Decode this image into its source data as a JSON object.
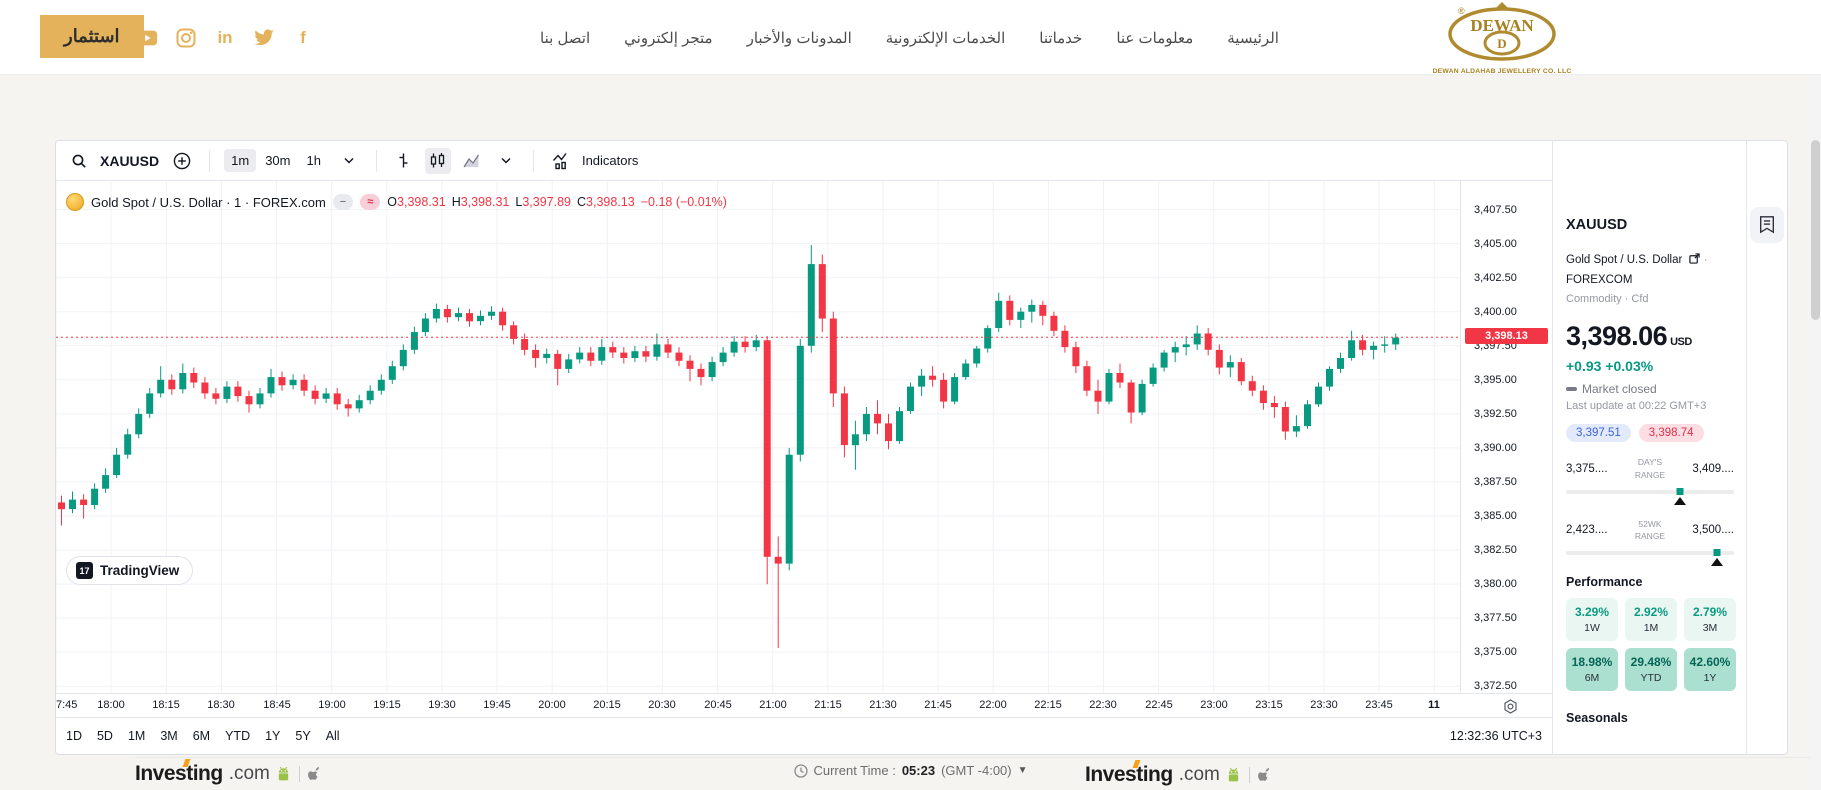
{
  "header": {
    "invest_button": "استثمار",
    "social": [
      "youtube-icon",
      "instagram-icon",
      "linkedin-icon",
      "twitter-icon",
      "facebook-icon"
    ],
    "nav": [
      {
        "label": "اتصل بنا"
      },
      {
        "label": "متجر إلكتروني"
      },
      {
        "label": "المدونات والأخبار"
      },
      {
        "label": "الخدمات الإلكترونية"
      },
      {
        "label": "خدماتنا"
      },
      {
        "label": "معلومات عنا"
      },
      {
        "label": "الرئيسية"
      }
    ],
    "logo": {
      "name": "DEWAN",
      "subtitle": "DEWAN ALDAHAB JEWELLERY CO. LLC"
    }
  },
  "toolbar": {
    "symbol": "XAUUSD",
    "intervals": [
      "1m",
      "30m",
      "1h"
    ],
    "active_interval": "1m",
    "indicators_label": "Indicators"
  },
  "legend": {
    "title": "Gold Spot / U.S. Dollar · 1 · FOREX.com",
    "minus_pill": "−",
    "approx_pill": "≈",
    "o_label": "O",
    "o": "3,398.31",
    "h_label": "H",
    "h": "3,398.31",
    "l_label": "L",
    "l": "3,397.89",
    "c_label": "C",
    "c": "3,398.13",
    "change": "−0.18 (−0.01%)"
  },
  "tv_attribution": "TradingView",
  "bottom_bar": {
    "ranges": [
      "1D",
      "5D",
      "1M",
      "3M",
      "6M",
      "YTD",
      "1Y",
      "5Y",
      "All"
    ],
    "clock": "12:32:36 UTC+3"
  },
  "chart_data": {
    "type": "candlestick",
    "symbol": "XAUUSD",
    "title": "Gold Spot / U.S. Dollar · 1 · FOREX.com",
    "up_color": "#089981",
    "down_color": "#f23645",
    "grid_color": "#f0f2f6",
    "ylim": [
      3372.0,
      3409.6
    ],
    "x_span_minutes": 382,
    "grid_minutes": 15,
    "candle_minutes": 3,
    "time_start": "17:45",
    "price_line": 3398.13,
    "price_tag_label": "3,398.13",
    "price_ticks": [
      {
        "value": 3407.5,
        "label": "3,407.50"
      },
      {
        "value": 3405.0,
        "label": "3,405.00"
      },
      {
        "value": 3402.5,
        "label": "3,402.50"
      },
      {
        "value": 3400.0,
        "label": "3,400.00"
      },
      {
        "value": 3397.5,
        "label": "3,397.50"
      },
      {
        "value": 3395.0,
        "label": "3,395.00"
      },
      {
        "value": 3392.5,
        "label": "3,392.50"
      },
      {
        "value": 3390.0,
        "label": "3,390.00"
      },
      {
        "value": 3387.5,
        "label": "3,387.50"
      },
      {
        "value": 3385.0,
        "label": "3,385.00"
      },
      {
        "value": 3382.5,
        "label": "3,382.50"
      },
      {
        "value": 3380.0,
        "label": "3,380.00"
      },
      {
        "value": 3377.5,
        "label": "3,377.50"
      },
      {
        "value": 3375.0,
        "label": "3,375.00"
      },
      {
        "value": 3372.5,
        "label": "3,372.50"
      }
    ],
    "time_labels": [
      {
        "t": 0,
        "label": "7:45",
        "edge": true
      },
      {
        "t": 15,
        "label": "18:00"
      },
      {
        "t": 30,
        "label": "18:15"
      },
      {
        "t": 45,
        "label": "18:30"
      },
      {
        "t": 60,
        "label": "18:45"
      },
      {
        "t": 75,
        "label": "19:00"
      },
      {
        "t": 90,
        "label": "19:15"
      },
      {
        "t": 105,
        "label": "19:30"
      },
      {
        "t": 120,
        "label": "19:45"
      },
      {
        "t": 135,
        "label": "20:00"
      },
      {
        "t": 150,
        "label": "20:15"
      },
      {
        "t": 165,
        "label": "20:30"
      },
      {
        "t": 180,
        "label": "20:45"
      },
      {
        "t": 195,
        "label": "21:00"
      },
      {
        "t": 210,
        "label": "21:15"
      },
      {
        "t": 225,
        "label": "21:30"
      },
      {
        "t": 240,
        "label": "21:45"
      },
      {
        "t": 255,
        "label": "22:00"
      },
      {
        "t": 270,
        "label": "22:15"
      },
      {
        "t": 285,
        "label": "22:30"
      },
      {
        "t": 300,
        "label": "22:45"
      },
      {
        "t": 315,
        "label": "23:00"
      },
      {
        "t": 330,
        "label": "23:15"
      },
      {
        "t": 345,
        "label": "23:30"
      },
      {
        "t": 360,
        "label": "23:45"
      },
      {
        "t": 375,
        "label": "11",
        "bold": true
      }
    ],
    "candles": [
      [
        3386.0,
        3386.5,
        3384.3,
        3385.5
      ],
      [
        3385.5,
        3386.8,
        3385.2,
        3386.2
      ],
      [
        3386.2,
        3386.6,
        3384.8,
        3385.8
      ],
      [
        3385.8,
        3387.4,
        3385.5,
        3387.0
      ],
      [
        3387.0,
        3388.5,
        3386.7,
        3388.0
      ],
      [
        3388.0,
        3390.0,
        3387.8,
        3389.5
      ],
      [
        3389.5,
        3391.4,
        3389.2,
        3391.0
      ],
      [
        3391.0,
        3392.9,
        3390.7,
        3392.5
      ],
      [
        3392.5,
        3394.4,
        3392.2,
        3394.0
      ],
      [
        3394.0,
        3396.0,
        3393.7,
        3395.0
      ],
      [
        3395.0,
        3395.4,
        3393.9,
        3394.3
      ],
      [
        3394.3,
        3396.2,
        3394.0,
        3395.5
      ],
      [
        3395.5,
        3395.9,
        3394.4,
        3394.8
      ],
      [
        3394.8,
        3395.2,
        3393.6,
        3394.0
      ],
      [
        3394.0,
        3394.4,
        3393.2,
        3393.6
      ],
      [
        3393.6,
        3394.9,
        3393.3,
        3394.5
      ],
      [
        3394.5,
        3394.9,
        3393.4,
        3393.8
      ],
      [
        3393.8,
        3394.2,
        3392.6,
        3393.2
      ],
      [
        3393.2,
        3394.4,
        3392.9,
        3394.0
      ],
      [
        3394.0,
        3395.8,
        3393.7,
        3395.2
      ],
      [
        3395.2,
        3395.6,
        3394.2,
        3394.6
      ],
      [
        3394.6,
        3395.4,
        3394.3,
        3395.0
      ],
      [
        3395.0,
        3395.4,
        3393.8,
        3394.2
      ],
      [
        3394.2,
        3394.6,
        3393.2,
        3393.6
      ],
      [
        3393.6,
        3394.4,
        3393.3,
        3394.0
      ],
      [
        3394.0,
        3394.4,
        3392.8,
        3393.2
      ],
      [
        3393.2,
        3393.6,
        3392.3,
        3392.9
      ],
      [
        3392.9,
        3393.9,
        3392.6,
        3393.5
      ],
      [
        3393.5,
        3394.6,
        3393.2,
        3394.2
      ],
      [
        3394.2,
        3395.4,
        3393.9,
        3395.0
      ],
      [
        3395.0,
        3396.4,
        3394.7,
        3396.0
      ],
      [
        3396.0,
        3397.6,
        3395.7,
        3397.2
      ],
      [
        3397.2,
        3398.9,
        3396.9,
        3398.5
      ],
      [
        3398.5,
        3399.9,
        3398.2,
        3399.5
      ],
      [
        3399.5,
        3400.6,
        3399.2,
        3400.2
      ],
      [
        3400.2,
        3400.5,
        3399.2,
        3399.6
      ],
      [
        3399.6,
        3400.3,
        3399.3,
        3399.9
      ],
      [
        3399.9,
        3400.2,
        3398.9,
        3399.3
      ],
      [
        3399.3,
        3400.1,
        3399.0,
        3399.7
      ],
      [
        3399.7,
        3400.4,
        3399.4,
        3400.0
      ],
      [
        3400.0,
        3400.3,
        3398.6,
        3399.0
      ],
      [
        3399.0,
        3399.3,
        3397.6,
        3398.0
      ],
      [
        3398.0,
        3398.4,
        3396.8,
        3397.2
      ],
      [
        3397.2,
        3397.6,
        3395.9,
        3396.6
      ],
      [
        3396.6,
        3397.3,
        3396.2,
        3396.9
      ],
      [
        3396.9,
        3397.2,
        3394.6,
        3395.8
      ],
      [
        3395.8,
        3396.9,
        3395.5,
        3396.5
      ],
      [
        3396.5,
        3397.4,
        3396.2,
        3397.0
      ],
      [
        3397.0,
        3397.4,
        3396.0,
        3396.4
      ],
      [
        3396.4,
        3398.0,
        3396.1,
        3397.4
      ],
      [
        3397.4,
        3397.8,
        3396.6,
        3397.0
      ],
      [
        3397.0,
        3397.4,
        3396.2,
        3396.6
      ],
      [
        3396.6,
        3397.5,
        3396.3,
        3397.1
      ],
      [
        3397.1,
        3397.5,
        3396.3,
        3396.7
      ],
      [
        3396.7,
        3398.4,
        3396.4,
        3397.6
      ],
      [
        3397.6,
        3398.0,
        3396.6,
        3397.0
      ],
      [
        3397.0,
        3397.4,
        3396.0,
        3396.4
      ],
      [
        3396.4,
        3396.8,
        3394.9,
        3395.8
      ],
      [
        3395.8,
        3396.2,
        3394.6,
        3395.2
      ],
      [
        3395.2,
        3396.7,
        3394.9,
        3396.3
      ],
      [
        3396.3,
        3397.4,
        3396.0,
        3397.0
      ],
      [
        3397.0,
        3398.2,
        3396.7,
        3397.8
      ],
      [
        3397.8,
        3398.2,
        3397.0,
        3397.4
      ],
      [
        3397.4,
        3398.3,
        3397.1,
        3397.9
      ],
      [
        3397.9,
        3398.2,
        3380.0,
        3382.0
      ],
      [
        3382.0,
        3383.5,
        3375.3,
        3381.5
      ],
      [
        3381.5,
        3390.0,
        3381.0,
        3389.5
      ],
      [
        3389.5,
        3398.0,
        3389.0,
        3397.5
      ],
      [
        3397.5,
        3404.9,
        3397.0,
        3403.5
      ],
      [
        3403.5,
        3404.2,
        3398.5,
        3399.5
      ],
      [
        3399.5,
        3400.0,
        3393.0,
        3394.0
      ],
      [
        3394.0,
        3394.5,
        3389.3,
        3390.2
      ],
      [
        3390.2,
        3392.0,
        3388.4,
        3391.0
      ],
      [
        3391.0,
        3393.0,
        3390.5,
        3392.5
      ],
      [
        3392.5,
        3393.5,
        3391.0,
        3391.8
      ],
      [
        3391.8,
        3392.5,
        3389.9,
        3390.5
      ],
      [
        3390.5,
        3393.0,
        3390.3,
        3392.7
      ],
      [
        3392.7,
        3394.8,
        3392.5,
        3394.5
      ],
      [
        3394.5,
        3395.8,
        3393.8,
        3395.3
      ],
      [
        3395.3,
        3396.0,
        3394.5,
        3395.0
      ],
      [
        3395.0,
        3395.5,
        3392.9,
        3393.4
      ],
      [
        3393.4,
        3395.5,
        3393.2,
        3395.2
      ],
      [
        3395.2,
        3396.5,
        3395.0,
        3396.2
      ],
      [
        3396.2,
        3397.5,
        3395.9,
        3397.3
      ],
      [
        3397.3,
        3399.0,
        3397.0,
        3398.8
      ],
      [
        3398.8,
        3401.4,
        3398.5,
        3400.8
      ],
      [
        3400.8,
        3401.2,
        3399.0,
        3399.4
      ],
      [
        3399.4,
        3400.3,
        3398.8,
        3400.0
      ],
      [
        3400.0,
        3400.9,
        3399.2,
        3400.5
      ],
      [
        3400.5,
        3400.8,
        3399.0,
        3399.7
      ],
      [
        3399.7,
        3400.0,
        3398.2,
        3398.6
      ],
      [
        3398.6,
        3399.0,
        3397.0,
        3397.4
      ],
      [
        3397.4,
        3397.8,
        3395.5,
        3396.0
      ],
      [
        3396.0,
        3396.4,
        3393.8,
        3394.2
      ],
      [
        3394.2,
        3395.0,
        3392.5,
        3393.4
      ],
      [
        3393.4,
        3395.8,
        3393.2,
        3395.5
      ],
      [
        3395.5,
        3396.2,
        3394.4,
        3394.8
      ],
      [
        3394.8,
        3395.0,
        3391.8,
        3392.6
      ],
      [
        3392.6,
        3395.0,
        3392.4,
        3394.7
      ],
      [
        3394.7,
        3396.2,
        3394.5,
        3395.9
      ],
      [
        3395.9,
        3397.2,
        3395.6,
        3397.0
      ],
      [
        3397.0,
        3397.8,
        3396.3,
        3397.4
      ],
      [
        3397.4,
        3398.2,
        3396.8,
        3397.6
      ],
      [
        3397.6,
        3399.0,
        3397.2,
        3398.4
      ],
      [
        3398.4,
        3398.8,
        3396.8,
        3397.2
      ],
      [
        3397.2,
        3397.6,
        3395.4,
        3395.9
      ],
      [
        3395.9,
        3396.8,
        3395.2,
        3396.3
      ],
      [
        3396.3,
        3396.6,
        3394.6,
        3394.9
      ],
      [
        3394.9,
        3395.3,
        3393.8,
        3394.2
      ],
      [
        3394.2,
        3394.6,
        3392.8,
        3393.3
      ],
      [
        3393.3,
        3393.8,
        3392.2,
        3393.0
      ],
      [
        3393.0,
        3393.4,
        3390.6,
        3391.2
      ],
      [
        3391.2,
        3392.4,
        3390.8,
        3391.6
      ],
      [
        3391.6,
        3393.5,
        3391.4,
        3393.2
      ],
      [
        3393.2,
        3394.8,
        3393.0,
        3394.5
      ],
      [
        3394.5,
        3396.0,
        3394.2,
        3395.8
      ],
      [
        3395.8,
        3397.0,
        3395.5,
        3396.6
      ],
      [
        3396.6,
        3398.6,
        3396.4,
        3397.9
      ],
      [
        3397.9,
        3398.3,
        3396.8,
        3397.2
      ],
      [
        3397.2,
        3397.8,
        3396.5,
        3397.5
      ],
      [
        3397.5,
        3398.2,
        3397.0,
        3397.6
      ],
      [
        3397.6,
        3398.4,
        3397.2,
        3398.1
      ]
    ]
  },
  "panel": {
    "symbol": "XAUUSD",
    "name": "Gold Spot / U.S. Dollar",
    "name_bullet": "·",
    "exchange": "FOREXCOM",
    "type": "Commodity · Cfd",
    "price": "3,398.06",
    "currency": "USD",
    "change": "+0.93  +0.03%",
    "market_status": "Market closed",
    "last_update": "Last update at 00:22 GMT+3",
    "bid": "3,397.51",
    "ask": "3,398.74",
    "days_range": {
      "label": "DAY'S RANGE",
      "low": "3,375....",
      "high": "3,409....",
      "pos": 0.68
    },
    "wk52_range": {
      "label": "52WK RANGE",
      "low": "2,423....",
      "high": "3,500....",
      "pos": 0.9
    },
    "performance": {
      "title": "Performance",
      "tiles": [
        {
          "value": "3.29%",
          "label": "1W",
          "tone": "light"
        },
        {
          "value": "2.92%",
          "label": "1M",
          "tone": "light"
        },
        {
          "value": "2.79%",
          "label": "3M",
          "tone": "light"
        },
        {
          "value": "18.98%",
          "label": "6M",
          "tone": "dark"
        },
        {
          "value": "29.48%",
          "label": "YTD",
          "tone": "dark"
        },
        {
          "value": "42.60%",
          "label": "1Y",
          "tone": "dark"
        }
      ]
    },
    "seasonals_title": "Seasonals"
  },
  "footer": {
    "brand": "Investing",
    "brand_suffix": ".com",
    "current_time_label": "Current Time :",
    "current_time": "05:23",
    "timezone": "(GMT -4:00)"
  },
  "colors": {
    "accent_gold": "#e4b25b",
    "up": "#089981",
    "down": "#f23645",
    "bid_blue": "#3c62d9",
    "ask_red": "#e03147"
  }
}
